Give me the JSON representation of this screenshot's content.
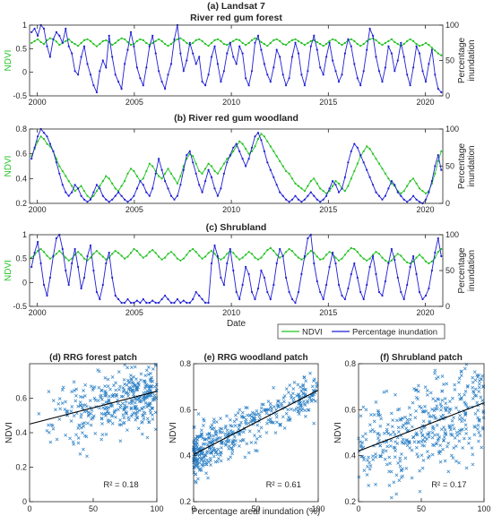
{
  "colors": {
    "ndvi": "#22c222",
    "inundation": "#1f1fd6",
    "scatter": "#2b7fc4",
    "fit": "#000000",
    "axis": "#262626"
  },
  "legend": {
    "ndvi": "NDVI",
    "inundation": "Percentage inundation"
  },
  "chart_data": [
    {
      "type": "line",
      "id": "a",
      "title": "(a) Landsat 7",
      "subtitle": "River red gum forest",
      "xlabel": "",
      "ylabel": "NDVI",
      "y2label": "Percentage inundation",
      "xlim": [
        1999.6,
        2020.9
      ],
      "ylim": [
        -0.5,
        1
      ],
      "y2lim": [
        0,
        100
      ],
      "xticks": [
        2000,
        2005,
        2010,
        2015,
        2020
      ],
      "yticks": [
        -0.5,
        0,
        0.5,
        1
      ],
      "y2ticks": [
        0,
        50,
        100
      ],
      "series": [
        {
          "name": "NDVI",
          "axis": "left",
          "x_start": 1999.7,
          "x_step": 0.16,
          "values": [
            0.62,
            0.66,
            0.7,
            0.64,
            0.6,
            0.68,
            0.72,
            0.7,
            0.65,
            0.58,
            0.62,
            0.66,
            0.7,
            0.64,
            0.6,
            0.56,
            0.62,
            0.68,
            0.7,
            0.66,
            0.6,
            0.55,
            0.6,
            0.66,
            0.68,
            0.64,
            0.58,
            0.62,
            0.68,
            0.72,
            0.7,
            0.64,
            0.58,
            0.6,
            0.66,
            0.7,
            0.68,
            0.62,
            0.58,
            0.62,
            0.66,
            0.7,
            0.66,
            0.6,
            0.56,
            0.6,
            0.66,
            0.7,
            0.72,
            0.68,
            0.62,
            0.58,
            0.62,
            0.68,
            0.7,
            0.66,
            0.6,
            0.56,
            0.62,
            0.68,
            0.7,
            0.66,
            0.6,
            0.58,
            0.62,
            0.66,
            0.7,
            0.68,
            0.62,
            0.58,
            0.62,
            0.68,
            0.72,
            0.7,
            0.64,
            0.6,
            0.56,
            0.62,
            0.68,
            0.7,
            0.66,
            0.6,
            0.58,
            0.64,
            0.68,
            0.7,
            0.66,
            0.62,
            0.58,
            0.62,
            0.66,
            0.68,
            0.64,
            0.6,
            0.56,
            0.6,
            0.66,
            0.7,
            0.68,
            0.62,
            0.58,
            0.62,
            0.68,
            0.7,
            0.66,
            0.6,
            0.56,
            0.6,
            0.66,
            0.7,
            0.72,
            0.68,
            0.62,
            0.58,
            0.62,
            0.66,
            0.7,
            0.64,
            0.6,
            0.56,
            0.6,
            0.66,
            0.7,
            0.66,
            0.6,
            0.56,
            0.58,
            0.62,
            0.58,
            0.52,
            0.46,
            0.4,
            0.36,
            0.4,
            0.56,
            0.68,
            0.66
          ]
        },
        {
          "name": "Percentage inundation",
          "axis": "right",
          "x_start": 1999.7,
          "x_step": 0.16,
          "values": [
            90,
            95,
            85,
            100,
            95,
            70,
            55,
            80,
            90,
            85,
            75,
            95,
            70,
            60,
            35,
            30,
            55,
            70,
            45,
            30,
            15,
            5,
            35,
            50,
            40,
            85,
            55,
            30,
            20,
            10,
            45,
            65,
            90,
            70,
            40,
            25,
            15,
            40,
            70,
            85,
            60,
            35,
            20,
            10,
            30,
            45,
            80,
            100,
            60,
            35,
            50,
            75,
            60,
            45,
            55,
            20,
            15,
            30,
            55,
            70,
            45,
            20,
            35,
            60,
            75,
            55,
            45,
            70,
            60,
            25,
            15,
            35,
            75,
            85,
            65,
            45,
            30,
            20,
            40,
            65,
            55,
            30,
            15,
            25,
            55,
            75,
            60,
            30,
            15,
            35,
            70,
            85,
            65,
            40,
            30,
            55,
            75,
            50,
            35,
            20,
            30,
            60,
            80,
            70,
            45,
            25,
            15,
            35,
            65,
            95,
            85,
            55,
            35,
            20,
            40,
            70,
            60,
            35,
            50,
            75,
            55,
            30,
            15,
            40,
            70,
            60,
            35,
            20,
            45,
            65,
            30,
            10,
            5,
            10,
            35,
            60,
            85,
            70,
            80
          ]
        }
      ]
    },
    {
      "type": "line",
      "id": "b",
      "title": "(b) River red gum woodland",
      "subtitle": "",
      "xlabel": "",
      "ylabel": "NDVI",
      "y2label": "Percentage inundation",
      "xlim": [
        1999.6,
        2020.9
      ],
      "ylim": [
        0.2,
        0.8
      ],
      "y2lim": [
        0,
        100
      ],
      "xticks": [
        2000,
        2005,
        2010,
        2015,
        2020
      ],
      "yticks": [
        0.2,
        0.4,
        0.6,
        0.8
      ],
      "y2ticks": [
        0,
        50,
        100
      ],
      "series": [
        {
          "name": "NDVI",
          "axis": "left",
          "x_start": 1999.7,
          "x_step": 0.16,
          "values": [
            0.58,
            0.64,
            0.7,
            0.74,
            0.72,
            0.68,
            0.66,
            0.62,
            0.56,
            0.5,
            0.46,
            0.42,
            0.38,
            0.34,
            0.3,
            0.32,
            0.34,
            0.3,
            0.26,
            0.24,
            0.26,
            0.3,
            0.34,
            0.38,
            0.42,
            0.4,
            0.36,
            0.32,
            0.3,
            0.34,
            0.38,
            0.44,
            0.48,
            0.46,
            0.42,
            0.38,
            0.4,
            0.46,
            0.52,
            0.5,
            0.46,
            0.42,
            0.4,
            0.44,
            0.48,
            0.44,
            0.4,
            0.36,
            0.42,
            0.5,
            0.56,
            0.6,
            0.58,
            0.52,
            0.46,
            0.44,
            0.48,
            0.52,
            0.5,
            0.46,
            0.44,
            0.48,
            0.52,
            0.56,
            0.58,
            0.62,
            0.66,
            0.7,
            0.68,
            0.64,
            0.6,
            0.62,
            0.66,
            0.72,
            0.76,
            0.74,
            0.7,
            0.66,
            0.62,
            0.58,
            0.54,
            0.5,
            0.46,
            0.44,
            0.4,
            0.36,
            0.34,
            0.32,
            0.3,
            0.34,
            0.38,
            0.4,
            0.36,
            0.32,
            0.3,
            0.28,
            0.3,
            0.34,
            0.38,
            0.36,
            0.32,
            0.3,
            0.34,
            0.4,
            0.46,
            0.52,
            0.58,
            0.62,
            0.66,
            0.64,
            0.6,
            0.56,
            0.52,
            0.48,
            0.44,
            0.4,
            0.36,
            0.34,
            0.3,
            0.28,
            0.3,
            0.34,
            0.38,
            0.4,
            0.36,
            0.32,
            0.3,
            0.28,
            0.3,
            0.36,
            0.44,
            0.54,
            0.62,
            0.66,
            0.6
          ]
        },
        {
          "name": "Percentage inundation",
          "axis": "right",
          "x_start": 1999.7,
          "x_step": 0.16,
          "values": [
            60,
            75,
            90,
            100,
            95,
            90,
            80,
            70,
            55,
            40,
            25,
            15,
            10,
            15,
            25,
            20,
            10,
            5,
            2,
            5,
            15,
            25,
            20,
            10,
            5,
            2,
            5,
            10,
            15,
            10,
            5,
            2,
            5,
            10,
            20,
            30,
            25,
            15,
            10,
            20,
            40,
            60,
            45,
            30,
            20,
            10,
            5,
            10,
            25,
            45,
            65,
            70,
            55,
            40,
            25,
            15,
            30,
            45,
            35,
            20,
            10,
            20,
            40,
            55,
            65,
            75,
            80,
            70,
            60,
            50,
            60,
            75,
            90,
            95,
            85,
            70,
            55,
            45,
            35,
            25,
            15,
            10,
            5,
            2,
            5,
            10,
            5,
            2,
            5,
            10,
            15,
            10,
            5,
            2,
            5,
            10,
            20,
            30,
            25,
            15,
            20,
            35,
            55,
            70,
            80,
            75,
            65,
            55,
            45,
            35,
            25,
            15,
            10,
            5,
            10,
            20,
            30,
            25,
            15,
            10,
            5,
            2,
            5,
            10,
            5,
            2,
            0,
            5,
            15,
            30,
            50,
            65,
            45
          ]
        }
      ]
    },
    {
      "type": "line",
      "id": "c",
      "title": "(c) Shrubland",
      "subtitle": "",
      "xlabel": "Date",
      "ylabel": "NDVI",
      "y2label": "Percentage inundation",
      "xlim": [
        1999.6,
        2020.9
      ],
      "ylim": [
        -0.5,
        1
      ],
      "y2lim": [
        0,
        100
      ],
      "xticks": [
        2000,
        2005,
        2010,
        2015,
        2020
      ],
      "yticks": [
        -0.5,
        0,
        0.5,
        1
      ],
      "y2ticks": [
        0,
        50,
        100
      ],
      "series": [
        {
          "name": "NDVI",
          "axis": "left",
          "x_start": 1999.7,
          "x_step": 0.16,
          "values": [
            0.52,
            0.58,
            0.66,
            0.7,
            0.64,
            0.56,
            0.5,
            0.54,
            0.6,
            0.66,
            0.6,
            0.52,
            0.46,
            0.5,
            0.58,
            0.64,
            0.58,
            0.5,
            0.46,
            0.52,
            0.6,
            0.66,
            0.6,
            0.54,
            0.48,
            0.52,
            0.6,
            0.66,
            0.62,
            0.56,
            0.5,
            0.54,
            0.62,
            0.7,
            0.66,
            0.58,
            0.52,
            0.56,
            0.64,
            0.68,
            0.62,
            0.54,
            0.48,
            0.52,
            0.6,
            0.64,
            0.58,
            0.5,
            0.46,
            0.5,
            0.58,
            0.66,
            0.7,
            0.64,
            0.56,
            0.5,
            0.54,
            0.62,
            0.66,
            0.6,
            0.52,
            0.48,
            0.52,
            0.6,
            0.66,
            0.62,
            0.54,
            0.48,
            0.52,
            0.58,
            0.64,
            0.6,
            0.52,
            0.48,
            0.52,
            0.6,
            0.68,
            0.72,
            0.66,
            0.58,
            0.52,
            0.56,
            0.64,
            0.7,
            0.66,
            0.58,
            0.52,
            0.48,
            0.52,
            0.6,
            0.66,
            0.62,
            0.54,
            0.48,
            0.5,
            0.58,
            0.64,
            0.6,
            0.52,
            0.46,
            0.5,
            0.58,
            0.66,
            0.72,
            0.7,
            0.64,
            0.56,
            0.5,
            0.46,
            0.5,
            0.58,
            0.64,
            0.6,
            0.52,
            0.46,
            0.42,
            0.46,
            0.54,
            0.6,
            0.56,
            0.48,
            0.42,
            0.4,
            0.44,
            0.52,
            0.58,
            0.52,
            0.44,
            0.4,
            0.44,
            0.52,
            0.64,
            0.7,
            0.66,
            0.6
          ]
        },
        {
          "name": "Percentage inundation",
          "axis": "right",
          "x_start": 1999.7,
          "x_step": 0.16,
          "values": [
            55,
            75,
            90,
            60,
            30,
            15,
            40,
            70,
            95,
            100,
            80,
            50,
            30,
            60,
            80,
            55,
            25,
            40,
            70,
            85,
            50,
            20,
            10,
            30,
            60,
            75,
            40,
            15,
            10,
            5,
            5,
            10,
            5,
            5,
            8,
            5,
            10,
            5,
            5,
            8,
            5,
            5,
            10,
            15,
            10,
            5,
            5,
            10,
            5,
            8,
            5,
            5,
            10,
            20,
            15,
            10,
            5,
            5,
            60,
            85,
            70,
            40,
            30,
            60,
            80,
            50,
            20,
            10,
            30,
            55,
            45,
            20,
            10,
            25,
            50,
            40,
            20,
            10,
            30,
            60,
            80,
            70,
            40,
            20,
            10,
            5,
            20,
            45,
            70,
            95,
            100,
            60,
            35,
            20,
            10,
            30,
            55,
            75,
            60,
            30,
            15,
            10,
            25,
            45,
            60,
            40,
            20,
            10,
            30,
            55,
            70,
            45,
            20,
            15,
            35,
            60,
            80,
            65,
            40,
            20,
            10,
            30,
            55,
            70,
            45,
            20,
            10,
            15,
            25,
            50,
            75,
            95,
            70
          ]
        }
      ]
    },
    {
      "type": "scatter",
      "id": "d",
      "title": "(d) RRG forest patch",
      "xlabel": "",
      "ylabel": "NDVI",
      "xlim": [
        0,
        100
      ],
      "ylim": [
        0,
        0.8
      ],
      "xticks": [
        0,
        50,
        100
      ],
      "yticks": [
        0,
        0.2,
        0.4,
        0.6
      ],
      "annotation": "R² = 0.18",
      "fit": {
        "intercept": 0.45,
        "slope": 0.0019
      },
      "points": {
        "count": 380,
        "seed": 11,
        "x_dist": "skew_high",
        "spread": 0.09
      }
    },
    {
      "type": "scatter",
      "id": "e",
      "title": "(e) RRG woodland patch",
      "xlabel": "Percentage areal inundation (%)",
      "ylabel": "NDVI",
      "xlim": [
        0,
        100
      ],
      "ylim": [
        0.2,
        0.8
      ],
      "xticks": [
        0,
        50,
        100
      ],
      "yticks": [
        0.2,
        0.4,
        0.6,
        0.8
      ],
      "annotation": "R² = 0.61",
      "fit": {
        "intercept": 0.405,
        "slope": 0.0028
      },
      "points": {
        "count": 460,
        "seed": 23,
        "x_dist": "skew_low",
        "spread": 0.05
      }
    },
    {
      "type": "scatter",
      "id": "f",
      "title": "(f) Shrubland patch",
      "xlabel": "",
      "ylabel": "NDVI",
      "xlim": [
        0,
        100
      ],
      "ylim": [
        0.2,
        0.8
      ],
      "xticks": [
        0,
        50,
        100
      ],
      "yticks": [
        0.2,
        0.4,
        0.6,
        0.8
      ],
      "annotation": "R² = 0.17",
      "fit": {
        "intercept": 0.42,
        "slope": 0.0021
      },
      "points": {
        "count": 420,
        "seed": 37,
        "x_dist": "uniform",
        "spread": 0.11
      }
    }
  ]
}
